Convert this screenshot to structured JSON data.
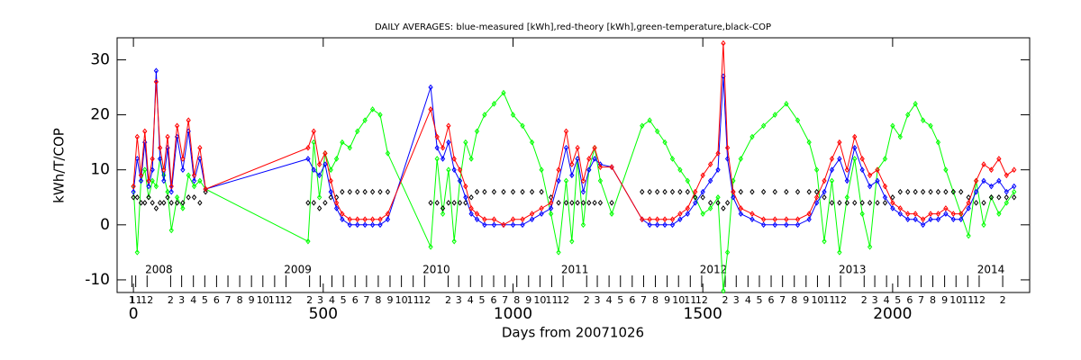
{
  "chart_data": {
    "type": "line",
    "title": "DAILY AVERAGES: blue-measured [kWh],red-theory [kWh],green-temperature,black-COP",
    "x_label": "Days from 20071026",
    "y_label": "kWh/T/COP",
    "xlim": [
      -43,
      2361
    ],
    "ylim": [
      -12.3,
      34
    ],
    "xticks": [
      0,
      500,
      1000,
      1500,
      2000
    ],
    "yticks": [
      -10,
      0,
      10,
      20,
      30
    ],
    "year_labels": [
      {
        "value": 67,
        "label": "2008"
      },
      {
        "value": 433,
        "label": "2009"
      },
      {
        "value": 798,
        "label": "2010"
      },
      {
        "value": 1163,
        "label": "2011"
      },
      {
        "value": 1528,
        "label": "2012"
      },
      {
        "value": 1894,
        "label": "2013"
      },
      {
        "value": 2259,
        "label": "2014"
      }
    ],
    "month_labels": [
      {
        "value": -4,
        "label": "1"
      },
      {
        "value": 6,
        "label": "11"
      },
      {
        "value": 36,
        "label": "12"
      },
      {
        "value": 98,
        "label": "2"
      },
      {
        "value": 127,
        "label": "3"
      },
      {
        "value": 158,
        "label": "4"
      },
      {
        "value": 188,
        "label": "5"
      },
      {
        "value": 219,
        "label": "6"
      },
      {
        "value": 249,
        "label": "7"
      },
      {
        "value": 280,
        "label": "8"
      },
      {
        "value": 311,
        "label": "9"
      },
      {
        "value": 341,
        "label": "10"
      },
      {
        "value": 372,
        "label": "11"
      },
      {
        "value": 402,
        "label": "12"
      },
      {
        "value": 464,
        "label": "2"
      },
      {
        "value": 492,
        "label": "3"
      },
      {
        "value": 523,
        "label": "4"
      },
      {
        "value": 553,
        "label": "5"
      },
      {
        "value": 584,
        "label": "6"
      },
      {
        "value": 614,
        "label": "7"
      },
      {
        "value": 645,
        "label": "8"
      },
      {
        "value": 676,
        "label": "9"
      },
      {
        "value": 706,
        "label": "10"
      },
      {
        "value": 737,
        "label": "11"
      },
      {
        "value": 767,
        "label": "12"
      },
      {
        "value": 829,
        "label": "2"
      },
      {
        "value": 857,
        "label": "3"
      },
      {
        "value": 888,
        "label": "4"
      },
      {
        "value": 918,
        "label": "5"
      },
      {
        "value": 949,
        "label": "6"
      },
      {
        "value": 979,
        "label": "7"
      },
      {
        "value": 1010,
        "label": "8"
      },
      {
        "value": 1041,
        "label": "9"
      },
      {
        "value": 1071,
        "label": "10"
      },
      {
        "value": 1102,
        "label": "11"
      },
      {
        "value": 1132,
        "label": "12"
      },
      {
        "value": 1194,
        "label": "2"
      },
      {
        "value": 1222,
        "label": "3"
      },
      {
        "value": 1253,
        "label": "4"
      },
      {
        "value": 1283,
        "label": "5"
      },
      {
        "value": 1314,
        "label": "6"
      },
      {
        "value": 1344,
        "label": "7"
      },
      {
        "value": 1375,
        "label": "8"
      },
      {
        "value": 1406,
        "label": "9"
      },
      {
        "value": 1436,
        "label": "10"
      },
      {
        "value": 1467,
        "label": "11"
      },
      {
        "value": 1497,
        "label": "12"
      },
      {
        "value": 1559,
        "label": "2"
      },
      {
        "value": 1588,
        "label": "3"
      },
      {
        "value": 1619,
        "label": "4"
      },
      {
        "value": 1649,
        "label": "5"
      },
      {
        "value": 1680,
        "label": "6"
      },
      {
        "value": 1710,
        "label": "7"
      },
      {
        "value": 1741,
        "label": "8"
      },
      {
        "value": 1772,
        "label": "9"
      },
      {
        "value": 1802,
        "label": "10"
      },
      {
        "value": 1833,
        "label": "11"
      },
      {
        "value": 1863,
        "label": "12"
      },
      {
        "value": 1925,
        "label": "2"
      },
      {
        "value": 1953,
        "label": "3"
      },
      {
        "value": 1984,
        "label": "4"
      },
      {
        "value": 2014,
        "label": "5"
      },
      {
        "value": 2045,
        "label": "6"
      },
      {
        "value": 2075,
        "label": "7"
      },
      {
        "value": 2106,
        "label": "8"
      },
      {
        "value": 2137,
        "label": "9"
      },
      {
        "value": 2167,
        "label": "10"
      },
      {
        "value": 2198,
        "label": "11"
      },
      {
        "value": 2228,
        "label": "12"
      },
      {
        "value": 2290,
        "label": "2"
      }
    ],
    "x": [
      0,
      10,
      20,
      30,
      40,
      50,
      60,
      70,
      80,
      90,
      100,
      115,
      130,
      145,
      160,
      175,
      190,
      460,
      475,
      490,
      505,
      520,
      535,
      550,
      570,
      590,
      610,
      630,
      650,
      670,
      783,
      800,
      815,
      830,
      845,
      860,
      875,
      890,
      905,
      925,
      950,
      975,
      1000,
      1025,
      1050,
      1075,
      1100,
      1120,
      1140,
      1155,
      1170,
      1185,
      1200,
      1215,
      1230,
      1260,
      1340,
      1360,
      1380,
      1400,
      1420,
      1440,
      1460,
      1480,
      1500,
      1520,
      1540,
      1554,
      1565,
      1580,
      1600,
      1630,
      1660,
      1690,
      1720,
      1750,
      1780,
      1800,
      1820,
      1840,
      1860,
      1880,
      1900,
      1920,
      1940,
      1960,
      1980,
      2000,
      2020,
      2040,
      2060,
      2080,
      2100,
      2120,
      2140,
      2160,
      2180,
      2200,
      2220,
      2240,
      2260,
      2280,
      2300,
      2320
    ],
    "series": [
      {
        "name": "green-temperature",
        "color": "#00ff00",
        "line": true,
        "values": [
          7,
          -5,
          8,
          10,
          5,
          8,
          7,
          12,
          9,
          6,
          -1,
          5,
          3,
          9,
          7,
          8,
          6.5,
          -3,
          15,
          5,
          13,
          10,
          12,
          15,
          14,
          17,
          19,
          21,
          20,
          13,
          -4,
          12,
          2,
          10,
          -3,
          8,
          15,
          12,
          17,
          20,
          22,
          24,
          20,
          18,
          15,
          10,
          2,
          -5,
          8,
          -3,
          12,
          0,
          10,
          14,
          8,
          2,
          18,
          19,
          17,
          15,
          12,
          10,
          8,
          5,
          2,
          3,
          5,
          -12,
          -5,
          8,
          12,
          16,
          18,
          20,
          22,
          19,
          15,
          10,
          -3,
          8,
          -5,
          5,
          12,
          2,
          -4,
          10,
          12,
          18,
          16,
          20,
          22,
          19,
          18,
          15,
          10,
          6,
          2,
          -2,
          8,
          0,
          5,
          2,
          4,
          6
        ]
      },
      {
        "name": "black-COP",
        "color": "#000000",
        "line": false,
        "values": [
          5,
          5,
          4,
          4,
          5,
          4,
          3,
          4,
          4,
          5,
          4,
          4,
          4,
          5,
          5,
          4,
          6,
          4,
          4,
          3,
          4,
          5,
          5,
          6,
          6,
          6,
          6,
          6,
          6,
          6,
          4,
          4,
          3,
          4,
          4,
          4,
          4,
          5,
          6,
          6,
          6,
          6,
          6,
          6,
          6,
          6,
          5,
          4,
          4,
          4,
          4,
          4,
          4,
          4,
          4,
          4,
          6,
          6,
          6,
          6,
          6,
          6,
          6,
          5,
          5,
          4,
          4,
          3,
          4,
          6,
          6,
          6,
          6,
          6,
          6,
          6,
          6,
          6,
          5,
          4,
          4,
          4,
          4,
          4,
          4,
          4,
          4,
          5,
          6,
          6,
          6,
          6,
          6,
          6,
          6,
          6,
          6,
          5,
          4,
          4,
          5,
          5,
          5,
          5
        ]
      },
      {
        "name": "blue-measured [kWh]",
        "color": "#0000ff",
        "line": true,
        "values": [
          6,
          12,
          8,
          15,
          7,
          10,
          28,
          12,
          8,
          14,
          6,
          16,
          10,
          17,
          8,
          12,
          6.5,
          12,
          10,
          9,
          11,
          6,
          3,
          1,
          0,
          0,
          0,
          0,
          0,
          1,
          25,
          14,
          12,
          15,
          10,
          8,
          5,
          2,
          1,
          0,
          0,
          0,
          0,
          0,
          1,
          2,
          3,
          8,
          14,
          9,
          12,
          6,
          10,
          12,
          11,
          10.5,
          1,
          0,
          0,
          0,
          0,
          1,
          2,
          4,
          6,
          8,
          10,
          27,
          12,
          5,
          2,
          1,
          0,
          0,
          0,
          0,
          1,
          4,
          6,
          10,
          12,
          8,
          14,
          10,
          7,
          8,
          5,
          3,
          2,
          1,
          1,
          0,
          1,
          1,
          2,
          1,
          1,
          3,
          6,
          8,
          7,
          8,
          6,
          7
        ]
      },
      {
        "name": "red-theory [kWh]",
        "color": "#ff0000",
        "line": true,
        "values": [
          7,
          16,
          9,
          17,
          8,
          12,
          26,
          14,
          10,
          16,
          7,
          18,
          12,
          19,
          9,
          14,
          6.5,
          14,
          17,
          11,
          13,
          8,
          4,
          2,
          1,
          1,
          1,
          1,
          1,
          2,
          21,
          16,
          14,
          18,
          12,
          10,
          7,
          3,
          2,
          1,
          1,
          0,
          1,
          1,
          2,
          3,
          4,
          10,
          17,
          11,
          14,
          8,
          12,
          14,
          10.5,
          10.5,
          1,
          1,
          1,
          1,
          1,
          2,
          3,
          6,
          9,
          11,
          13,
          33,
          14,
          6,
          3,
          2,
          1,
          1,
          1,
          1,
          2,
          5,
          8,
          12,
          15,
          10,
          16,
          12,
          9,
          10,
          7,
          4,
          3,
          2,
          2,
          1,
          2,
          2,
          3,
          2,
          2,
          4,
          8,
          11,
          10,
          12,
          9,
          10
        ]
      }
    ]
  }
}
